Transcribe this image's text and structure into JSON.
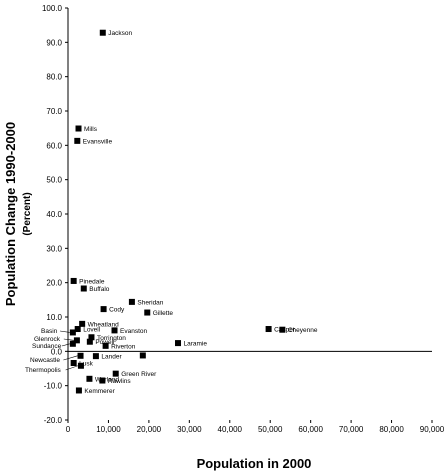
{
  "chart_data": {
    "type": "scatter",
    "title": "",
    "xlabel": "Population in 2000",
    "ylabel": "Population Change 1990-2000",
    "ylabel_sub": "(Percent)",
    "xlim": [
      0,
      90000
    ],
    "ylim": [
      -20,
      100
    ],
    "grid": false,
    "x_ticks": [
      "0",
      "10,000",
      "20,000",
      "30,000",
      "40,000",
      "50,000",
      "60,000",
      "70,000",
      "80,000",
      "90,000"
    ],
    "y_ticks": [
      "100.0",
      "90.0",
      "80.0",
      "70.0",
      "60.0",
      "50.0",
      "40.0",
      "30.0",
      "20.0",
      "10.0",
      "0.0",
      "-10.0",
      "-20.0"
    ],
    "points": [
      {
        "label": "Jackson",
        "x": 8600,
        "y": 92.8
      },
      {
        "label": "Mills",
        "x": 2600,
        "y": 64.9
      },
      {
        "label": "Evansville",
        "x": 2300,
        "y": 61.3
      },
      {
        "label": "Pinedale",
        "x": 1400,
        "y": 20.5
      },
      {
        "label": "Buffalo",
        "x": 3900,
        "y": 18.3
      },
      {
        "label": "Sheridan",
        "x": 15800,
        "y": 14.4
      },
      {
        "label": "Cody",
        "x": 8800,
        "y": 12.3
      },
      {
        "label": "Gillette",
        "x": 19600,
        "y": 11.3
      },
      {
        "label": "Wheatland",
        "x": 3500,
        "y": 8.0
      },
      {
        "label": "Lovell",
        "x": 2400,
        "y": 6.5
      },
      {
        "label": "Basin",
        "x": 1200,
        "y": 5.5
      },
      {
        "label": "Evanston",
        "x": 11500,
        "y": 6.1
      },
      {
        "label": "Casper",
        "x": 49600,
        "y": 6.5
      },
      {
        "label": "Cheyenne",
        "x": 53000,
        "y": 6.3
      },
      {
        "label": "Torrington",
        "x": 5800,
        "y": 4.1
      },
      {
        "label": "Glenrock",
        "x": 2200,
        "y": 3.2
      },
      {
        "label": "Powell",
        "x": 5400,
        "y": 2.8
      },
      {
        "label": "Laramie",
        "x": 27200,
        "y": 2.4
      },
      {
        "label": "Sundance",
        "x": 1200,
        "y": 2.2
      },
      {
        "label": "Riverton",
        "x": 9300,
        "y": 1.6
      },
      {
        "label": "Newcastle",
        "x": 3100,
        "y": -1.3
      },
      {
        "label": "Lander",
        "x": 6900,
        "y": -1.4
      },
      {
        "label": "Lusk",
        "x": 1400,
        "y": -3.4
      },
      {
        "label": "Thermopolis",
        "x": 3200,
        "y": -4.2
      },
      {
        "label": "Green River",
        "x": 11800,
        "y": -6.5
      },
      {
        "label": "Worland",
        "x": 5300,
        "y": -8.0
      },
      {
        "label": "Rawlins",
        "x": 8500,
        "y": -8.5
      },
      {
        "label": "Kemmerer",
        "x": 2700,
        "y": -11.4
      }
    ],
    "unlabeled_points": [
      {
        "x": 18500,
        "y": -1.2
      }
    ]
  }
}
